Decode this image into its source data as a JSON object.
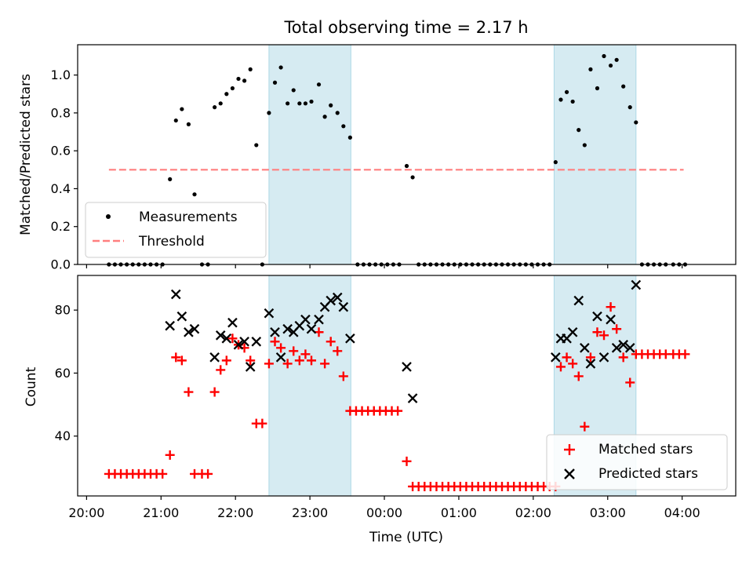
{
  "chart_data": [
    {
      "type": "scatter",
      "title": "Total observing time = 2.17 h",
      "xlabel": "",
      "ylabel": "Matched/Predicted stars",
      "xlim_hours": [
        19.88,
        28.72
      ],
      "ylim": [
        0,
        1.16
      ],
      "yticks": [
        "0.0",
        "0.2",
        "0.4",
        "0.6",
        "0.8",
        "1.0"
      ],
      "ytick_values": [
        0,
        0.2,
        0.4,
        0.6,
        0.8,
        1.0
      ],
      "legend_position": "lower-left",
      "shaded_intervals_hours": [
        [
          22.45,
          23.55
        ],
        [
          26.28,
          27.38
        ]
      ],
      "series": [
        {
          "name": "Measurements",
          "color": "#000000",
          "marker": "dot",
          "points": [
            [
              20.3,
              0
            ],
            [
              20.38,
              0
            ],
            [
              20.46,
              0
            ],
            [
              20.54,
              0
            ],
            [
              20.62,
              0
            ],
            [
              20.7,
              0
            ],
            [
              20.78,
              0
            ],
            [
              20.86,
              0
            ],
            [
              20.94,
              0
            ],
            [
              21.02,
              0
            ],
            [
              21.12,
              0.45
            ],
            [
              21.2,
              0.76
            ],
            [
              21.28,
              0.82
            ],
            [
              21.37,
              0.74
            ],
            [
              21.45,
              0.37
            ],
            [
              21.55,
              0
            ],
            [
              21.63,
              0
            ],
            [
              21.72,
              0.83
            ],
            [
              21.8,
              0.85
            ],
            [
              21.88,
              0.9
            ],
            [
              21.96,
              0.93
            ],
            [
              22.04,
              0.98
            ],
            [
              22.12,
              0.97
            ],
            [
              22.2,
              1.03
            ],
            [
              22.28,
              0.63
            ],
            [
              22.36,
              0
            ],
            [
              22.45,
              0.8
            ],
            [
              22.53,
              0.96
            ],
            [
              22.61,
              1.04
            ],
            [
              22.7,
              0.85
            ],
            [
              22.78,
              0.92
            ],
            [
              22.86,
              0.85
            ],
            [
              22.94,
              0.85
            ],
            [
              23.02,
              0.86
            ],
            [
              23.12,
              0.95
            ],
            [
              23.2,
              0.78
            ],
            [
              23.28,
              0.84
            ],
            [
              23.37,
              0.8
            ],
            [
              23.45,
              0.73
            ],
            [
              23.54,
              0.67
            ],
            [
              23.64,
              0
            ],
            [
              23.72,
              0
            ],
            [
              23.8,
              0
            ],
            [
              23.88,
              0
            ],
            [
              23.96,
              0
            ],
            [
              24.04,
              0
            ],
            [
              24.12,
              0
            ],
            [
              24.2,
              0
            ],
            [
              24.3,
              0.52
            ],
            [
              24.38,
              0.46
            ],
            [
              24.46,
              0
            ],
            [
              24.54,
              0
            ],
            [
              24.62,
              0
            ],
            [
              24.7,
              0
            ],
            [
              24.78,
              0
            ],
            [
              24.86,
              0
            ],
            [
              24.94,
              0
            ],
            [
              25.02,
              0
            ],
            [
              25.1,
              0
            ],
            [
              25.18,
              0
            ],
            [
              25.26,
              0
            ],
            [
              25.34,
              0
            ],
            [
              25.42,
              0
            ],
            [
              25.5,
              0
            ],
            [
              25.58,
              0
            ],
            [
              25.66,
              0
            ],
            [
              25.74,
              0
            ],
            [
              25.82,
              0
            ],
            [
              25.9,
              0
            ],
            [
              25.98,
              0
            ],
            [
              26.06,
              0
            ],
            [
              26.14,
              0
            ],
            [
              26.22,
              0
            ],
            [
              26.3,
              0.54
            ],
            [
              26.37,
              0.87
            ],
            [
              26.45,
              0.91
            ],
            [
              26.53,
              0.86
            ],
            [
              26.61,
              0.71
            ],
            [
              26.69,
              0.63
            ],
            [
              26.77,
              1.03
            ],
            [
              26.86,
              0.93
            ],
            [
              26.95,
              1.1
            ],
            [
              27.04,
              1.05
            ],
            [
              27.12,
              1.08
            ],
            [
              27.21,
              0.94
            ],
            [
              27.3,
              0.83
            ],
            [
              27.38,
              0.75
            ],
            [
              27.46,
              0
            ],
            [
              27.54,
              0
            ],
            [
              27.62,
              0
            ],
            [
              27.7,
              0
            ],
            [
              27.78,
              0
            ],
            [
              27.88,
              0
            ],
            [
              27.96,
              0
            ],
            [
              28.04,
              0
            ]
          ]
        },
        {
          "name": "Threshold",
          "color": "#ff7f7f",
          "style": "dashed",
          "points": [
            [
              20.3,
              0.5
            ],
            [
              28.02,
              0.5
            ]
          ]
        }
      ]
    },
    {
      "type": "scatter",
      "title": "",
      "xlabel": "Time (UTC)",
      "ylabel": "Count",
      "xlim_hours": [
        19.88,
        28.72
      ],
      "ylim": [
        21,
        91
      ],
      "yticks": [
        "40",
        "60",
        "80"
      ],
      "ytick_values": [
        40,
        60,
        80
      ],
      "xticks": [
        "20:00",
        "21:00",
        "22:00",
        "23:00",
        "00:00",
        "01:00",
        "02:00",
        "03:00",
        "04:00"
      ],
      "xtick_values": [
        20,
        21,
        22,
        23,
        24,
        25,
        26,
        27,
        28
      ],
      "legend_position": "lower-right",
      "shaded_intervals_hours": [
        [
          22.45,
          23.55
        ],
        [
          26.28,
          27.38
        ]
      ],
      "series": [
        {
          "name": "Matched stars",
          "color": "#ff0000",
          "marker": "plus",
          "points": [
            [
              20.3,
              28
            ],
            [
              20.38,
              28
            ],
            [
              20.46,
              28
            ],
            [
              20.54,
              28
            ],
            [
              20.62,
              28
            ],
            [
              20.7,
              28
            ],
            [
              20.78,
              28
            ],
            [
              20.86,
              28
            ],
            [
              20.94,
              28
            ],
            [
              21.02,
              28
            ],
            [
              21.12,
              34
            ],
            [
              21.2,
              65
            ],
            [
              21.28,
              64
            ],
            [
              21.37,
              54
            ],
            [
              21.45,
              28
            ],
            [
              21.55,
              28
            ],
            [
              21.63,
              28
            ],
            [
              21.72,
              54
            ],
            [
              21.8,
              61
            ],
            [
              21.88,
              64
            ],
            [
              21.96,
              71
            ],
            [
              22.04,
              69
            ],
            [
              22.12,
              68
            ],
            [
              22.2,
              64
            ],
            [
              22.28,
              44
            ],
            [
              22.36,
              44
            ],
            [
              22.45,
              63
            ],
            [
              22.53,
              70
            ],
            [
              22.61,
              68
            ],
            [
              22.7,
              63
            ],
            [
              22.78,
              67
            ],
            [
              22.86,
              64
            ],
            [
              22.94,
              66
            ],
            [
              23.02,
              64
            ],
            [
              23.12,
              73
            ],
            [
              23.2,
              63
            ],
            [
              23.28,
              70
            ],
            [
              23.37,
              67
            ],
            [
              23.45,
              59
            ],
            [
              23.54,
              48
            ],
            [
              23.62,
              48
            ],
            [
              23.7,
              48
            ],
            [
              23.78,
              48
            ],
            [
              23.86,
              48
            ],
            [
              23.94,
              48
            ],
            [
              24.02,
              48
            ],
            [
              24.1,
              48
            ],
            [
              24.18,
              48
            ],
            [
              24.3,
              32
            ],
            [
              24.38,
              24
            ],
            [
              24.46,
              24
            ],
            [
              24.54,
              24
            ],
            [
              24.62,
              24
            ],
            [
              24.7,
              24
            ],
            [
              24.78,
              24
            ],
            [
              24.86,
              24
            ],
            [
              24.94,
              24
            ],
            [
              25.02,
              24
            ],
            [
              25.1,
              24
            ],
            [
              25.18,
              24
            ],
            [
              25.26,
              24
            ],
            [
              25.34,
              24
            ],
            [
              25.42,
              24
            ],
            [
              25.5,
              24
            ],
            [
              25.58,
              24
            ],
            [
              25.66,
              24
            ],
            [
              25.74,
              24
            ],
            [
              25.82,
              24
            ],
            [
              25.9,
              24
            ],
            [
              25.98,
              24
            ],
            [
              26.06,
              24
            ],
            [
              26.14,
              24
            ],
            [
              26.22,
              24
            ],
            [
              26.3,
              24
            ],
            [
              26.37,
              62
            ],
            [
              26.45,
              65
            ],
            [
              26.53,
              63
            ],
            [
              26.61,
              59
            ],
            [
              26.69,
              43
            ],
            [
              26.77,
              65
            ],
            [
              26.86,
              73
            ],
            [
              26.95,
              72
            ],
            [
              27.04,
              81
            ],
            [
              27.12,
              74
            ],
            [
              27.21,
              65
            ],
            [
              27.3,
              57
            ],
            [
              27.38,
              66
            ],
            [
              27.46,
              66
            ],
            [
              27.54,
              66
            ],
            [
              27.62,
              66
            ],
            [
              27.7,
              66
            ],
            [
              27.78,
              66
            ],
            [
              27.88,
              66
            ],
            [
              27.96,
              66
            ],
            [
              28.04,
              66
            ]
          ]
        },
        {
          "name": "Predicted stars",
          "color": "#000000",
          "marker": "x",
          "points": [
            [
              21.12,
              75
            ],
            [
              21.2,
              85
            ],
            [
              21.28,
              78
            ],
            [
              21.37,
              73
            ],
            [
              21.45,
              74
            ],
            [
              21.72,
              65
            ],
            [
              21.8,
              72
            ],
            [
              21.88,
              71
            ],
            [
              21.96,
              76
            ],
            [
              22.04,
              69
            ],
            [
              22.12,
              70
            ],
            [
              22.2,
              62
            ],
            [
              22.28,
              70
            ],
            [
              22.45,
              79
            ],
            [
              22.53,
              73
            ],
            [
              22.61,
              65
            ],
            [
              22.7,
              74
            ],
            [
              22.78,
              73
            ],
            [
              22.86,
              75
            ],
            [
              22.94,
              77
            ],
            [
              23.02,
              74
            ],
            [
              23.12,
              77
            ],
            [
              23.2,
              81
            ],
            [
              23.28,
              83
            ],
            [
              23.37,
              84
            ],
            [
              23.45,
              81
            ],
            [
              23.54,
              71
            ],
            [
              24.3,
              62
            ],
            [
              24.38,
              52
            ],
            [
              26.3,
              65
            ],
            [
              26.37,
              71
            ],
            [
              26.45,
              71
            ],
            [
              26.53,
              73
            ],
            [
              26.61,
              83
            ],
            [
              26.69,
              68
            ],
            [
              26.77,
              63
            ],
            [
              26.86,
              78
            ],
            [
              26.95,
              65
            ],
            [
              27.04,
              77
            ],
            [
              27.12,
              68
            ],
            [
              27.21,
              69
            ],
            [
              27.3,
              68
            ],
            [
              27.38,
              88
            ]
          ]
        }
      ]
    }
  ]
}
